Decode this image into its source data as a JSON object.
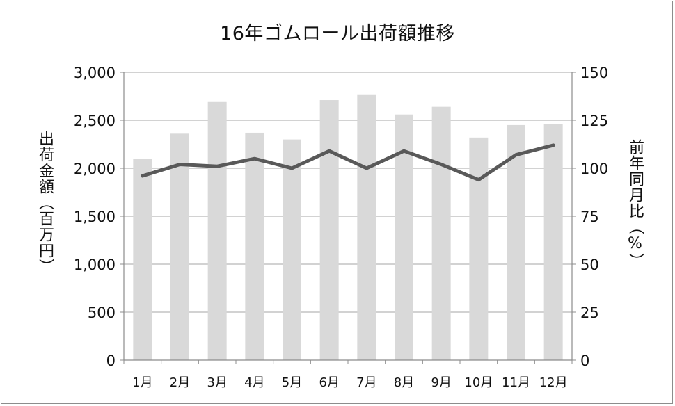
{
  "chart_data": {
    "type": "bar",
    "title": "16年ゴムロール出荷額推移",
    "ylabel": "出荷金額（百万円）",
    "y2label": "前年同月比（%）",
    "categories": [
      "1月",
      "2月",
      "3月",
      "4月",
      "5月",
      "6月",
      "7月",
      "8月",
      "9月",
      "10月",
      "11月",
      "12月"
    ],
    "ylim": [
      0,
      3000
    ],
    "yticks": [
      "0",
      "500",
      "1,000",
      "1,500",
      "2,000",
      "2,500",
      "3,000"
    ],
    "y2lim": [
      0,
      150
    ],
    "y2ticks": [
      "0",
      "25",
      "50",
      "75",
      "100",
      "125",
      "150"
    ],
    "series": [
      {
        "kind": "bar",
        "axis": "left",
        "color": "#d9d9d9",
        "values": [
          2100,
          2360,
          2690,
          2370,
          2300,
          2710,
          2770,
          2560,
          2640,
          2320,
          2450,
          2460
        ]
      },
      {
        "kind": "line",
        "axis": "right",
        "color": "#595959",
        "values": [
          96,
          102,
          101,
          105,
          100,
          109,
          100,
          109,
          102,
          94,
          107,
          112
        ]
      }
    ],
    "grid": true
  }
}
